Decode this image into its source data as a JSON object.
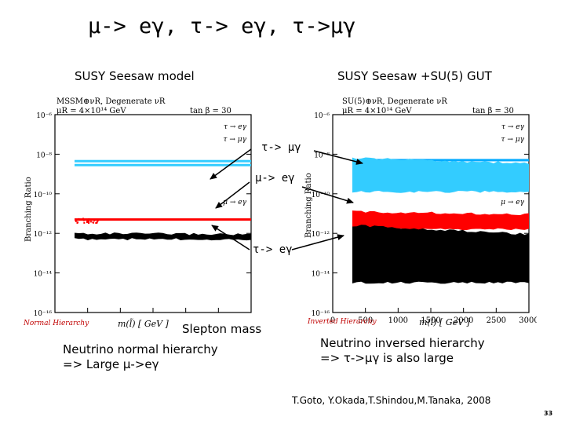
{
  "slide": {
    "title": "μ-> eγ, τ-> eγ, τ->μγ",
    "left_title": "SUSY Seesaw model",
    "right_title": "SUSY Seesaw +SU(5) GUT",
    "annotations": [
      "τ-> μγ",
      "μ-> eγ",
      "τ-> eγ"
    ],
    "slepton_mass": "Slepton mass",
    "left_caption": [
      "Neutrino normal hierarchy",
      "=> Large μ->eγ"
    ],
    "right_caption": [
      "Neutrino inversed hierarchy",
      "=> τ->μγ is also large"
    ],
    "citation": "T.Goto, Y.Okada,T.Shindou,M.Tanaka, 2008",
    "page_number": "33"
  },
  "chart_data": [
    {
      "type": "scatter",
      "header_line1": "MSSM⊕νR, Degenerate νR",
      "header_line2": "μR = 4×10¹⁴ GeV",
      "tan_beta": "tan β = 30",
      "ylabel": "Branching Ratio",
      "xlabel": "m(l̃) [ GeV ]",
      "corner_label": "Normal Hierarchy",
      "xlim": [
        0,
        3000
      ],
      "ylim_exp": [
        -16,
        -6
      ],
      "ytick_labels": [
        "10⁻⁶",
        "10⁻⁸",
        "10⁻¹⁰",
        "10⁻¹²",
        "10⁻¹⁴",
        "10⁻¹⁶"
      ],
      "legend": [
        "τ → eγ",
        "τ → μγ",
        "μ → eγ"
      ],
      "series": [
        {
          "name": "τ → eγ",
          "color": "#33ccff",
          "log10_br": -8.35
        },
        {
          "name": "τ → μγ",
          "color": "#33ccff",
          "log10_br": -8.55
        },
        {
          "name": "μ → eγ",
          "color": "#ff0000",
          "log10_br": -11.3
        },
        {
          "color": "#000000",
          "log10_br_band": [
            -12.3,
            -12.0
          ]
        }
      ]
    },
    {
      "type": "scatter",
      "header_line1": "SU(5)⊕νR, Degenerate νR",
      "header_line2": "μR = 4×10¹⁴ GeV",
      "tan_beta": "tan β = 30",
      "ylabel": "Branching Ratio",
      "xlabel": "m(l̃) [ GeV ]",
      "corner_label": "Inverted Hierarchy",
      "xlim": [
        0,
        3000
      ],
      "xticks": [
        "0",
        "500",
        "1000",
        "1500",
        "2000",
        "2500",
        "3000"
      ],
      "ylim_exp": [
        -16,
        -6
      ],
      "ytick_labels": [
        "10⁻⁶",
        "10⁻⁸",
        "10⁻¹⁰",
        "10⁻¹²",
        "10⁻¹⁴",
        "10⁻¹⁶"
      ],
      "legend": [
        "τ → eγ",
        "τ → μγ",
        "μ → eγ"
      ],
      "series": [
        {
          "name": "τ → eγ",
          "color": "#00aaff",
          "log10_br": -8.3
        },
        {
          "name": "τ → μγ",
          "color": "#33ccff",
          "log10_br_band": [
            -9.9,
            -8.2
          ]
        },
        {
          "name": "μ → eγ",
          "color": "#ff0000",
          "log10_br_band": [
            -11.8,
            -10.9
          ]
        },
        {
          "color": "#000000",
          "log10_br_band": [
            -14.5,
            -11.6
          ]
        }
      ]
    }
  ]
}
